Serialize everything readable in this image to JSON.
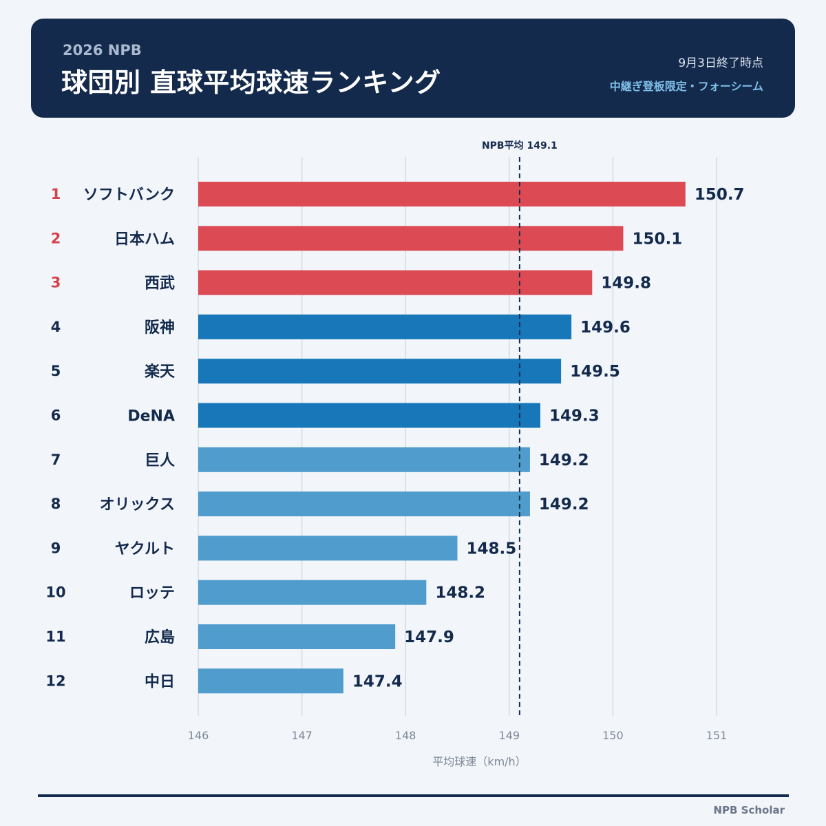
{
  "header": {
    "season": "2026 NPB",
    "title": "球団別 直球平均球速ランキング",
    "as_of": "9月3日終了時点",
    "filter": "中継ぎ登板限定・フォーシーム"
  },
  "chart_data": {
    "type": "bar",
    "orientation": "horizontal",
    "categories": [
      "ソフトバンク",
      "日本ハム",
      "西武",
      "阪神",
      "楽天",
      "DeNA",
      "巨人",
      "オリックス",
      "ヤクルト",
      "ロッテ",
      "広島",
      "中日"
    ],
    "ranks": [
      "1",
      "2",
      "3",
      "4",
      "5",
      "6",
      "7",
      "8",
      "9",
      "10",
      "11",
      "12"
    ],
    "values": [
      150.7,
      150.1,
      149.8,
      149.6,
      149.5,
      149.3,
      149.2,
      149.2,
      148.5,
      148.2,
      147.9,
      147.4
    ],
    "value_labels": [
      "150.7",
      "150.1",
      "149.8",
      "149.6",
      "149.5",
      "149.3",
      "149.2",
      "149.2",
      "148.5",
      "148.2",
      "147.9",
      "147.4"
    ],
    "bar_colors": [
      "#dc4b54",
      "#dc4b54",
      "#dc4b54",
      "#1777b9",
      "#1777b9",
      "#1777b9",
      "#4f9ccd",
      "#4f9ccd",
      "#4f9ccd",
      "#4f9ccd",
      "#4f9ccd",
      "#4f9ccd"
    ],
    "rank_colors": [
      "#d5424b",
      "#d5424b",
      "#d5424b",
      "#142a4c",
      "#142a4c",
      "#142a4c",
      "#142a4c",
      "#142a4c",
      "#142a4c",
      "#142a4c",
      "#142a4c",
      "#142a4c"
    ],
    "xlim": [
      146,
      151
    ],
    "xticks": [
      "146",
      "147",
      "148",
      "149",
      "150",
      "151"
    ],
    "xlabel": "平均球速（km/h）",
    "grid": "vertical",
    "reference_line": {
      "value": 149.1,
      "label": "NPB平均 149.1"
    }
  },
  "footer": {
    "credit": "NPB Scholar"
  }
}
